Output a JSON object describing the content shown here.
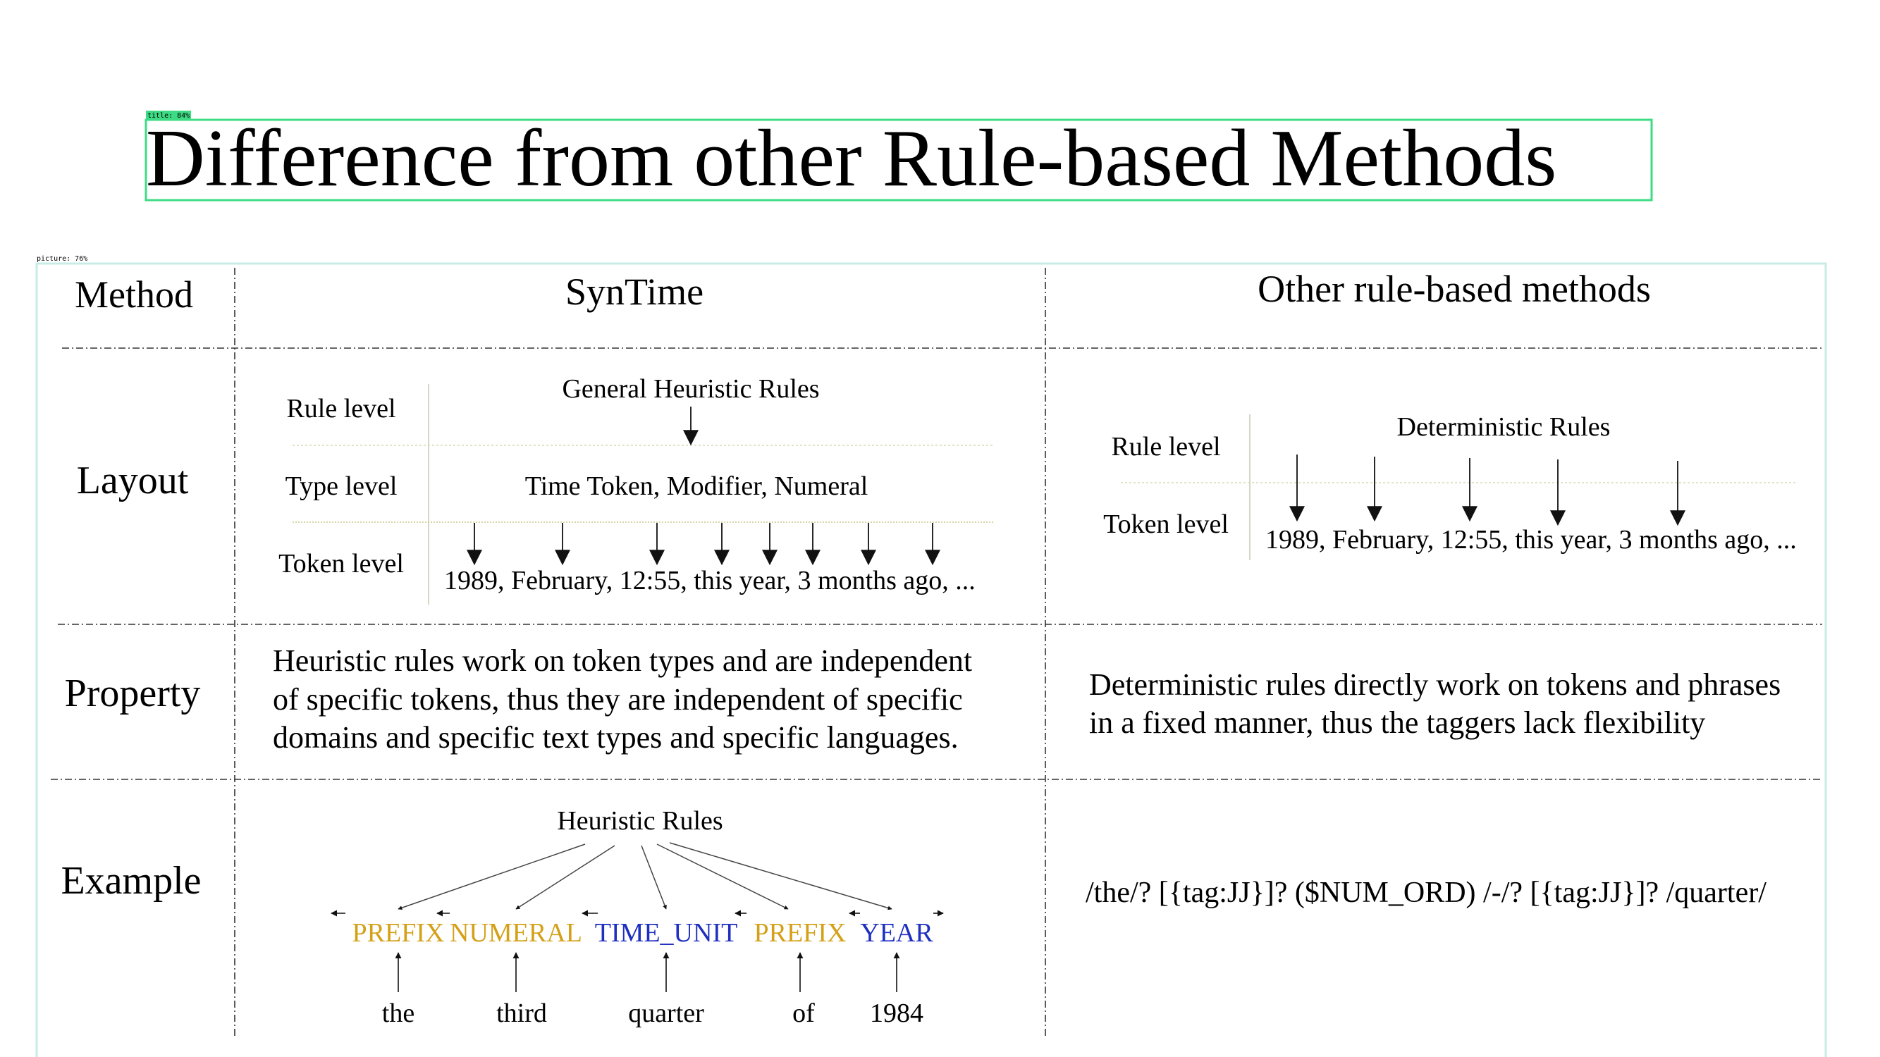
{
  "annotations": {
    "title_tag": "title: 84%",
    "picture_tag": "picture: 76%",
    "title_box_color": "#3ddc84",
    "picture_box_color": "#c7ece6"
  },
  "slide": {
    "title": "Difference from other Rule-based Methods"
  },
  "table": {
    "headers": {
      "method": "Method",
      "syntime": "SynTime",
      "other": "Other rule-based methods"
    },
    "rows": {
      "layout": "Layout",
      "property": "Property",
      "example": "Example"
    },
    "syntime_layout": {
      "rule_level": "Rule level",
      "type_level": "Type level",
      "token_level": "Token level",
      "rules": "General Heuristic Rules",
      "types": "Time Token, Modifier, Numeral",
      "tokens": "1989, February, 12:55, this year, 3 months ago, ..."
    },
    "other_layout": {
      "rule_level": "Rule level",
      "token_level": "Token level",
      "rules": "Deterministic Rules",
      "tokens": "1989, February, 12:55, this year, 3 months ago, ..."
    },
    "syntime_property": [
      "Heuristic rules work on token types and are independent",
      "of specific tokens, thus they are independent of specific",
      "domains and specific text types and specific languages."
    ],
    "other_property": [
      "Deterministic rules directly work on tokens and phrases",
      "in a fixed manner, thus the taggers lack flexibility"
    ],
    "syntime_example": {
      "rules": "Heuristic Rules",
      "tags": [
        {
          "label": "PREFIX",
          "color": "#d4a017"
        },
        {
          "label": "NUMERAL",
          "color": "#d4a017"
        },
        {
          "label": "TIME_UNIT",
          "color": "#1f2fbf"
        },
        {
          "label": "PREFIX",
          "color": "#d4a017"
        },
        {
          "label": "YEAR",
          "color": "#1f2fbf"
        }
      ],
      "words": [
        "the",
        "third",
        "quarter",
        "of",
        "1984"
      ]
    },
    "other_example": "/the/? [{tag:JJ}]? ($NUM_ORD) /-/? [{tag:JJ}]? /quarter/"
  }
}
